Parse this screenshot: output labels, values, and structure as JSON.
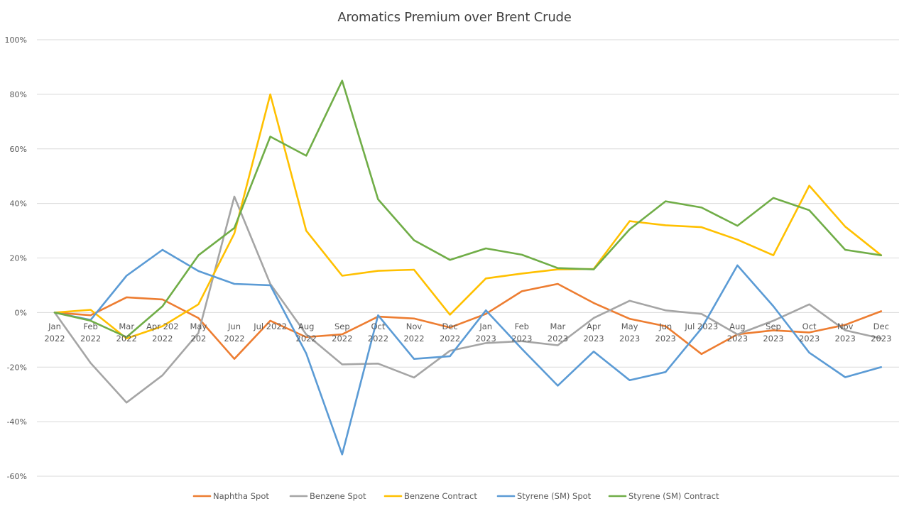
{
  "chart_data": {
    "type": "line",
    "title": "Aromatics Premium over Brent Crude",
    "xlabel": "",
    "ylabel": "",
    "ylim": [
      -60,
      100
    ],
    "ytick_step": 20,
    "y_unit": "%",
    "grid": true,
    "legend_position": "bottom",
    "categories": [
      [
        "Jan",
        "2022"
      ],
      [
        "Feb",
        "2022"
      ],
      [
        "Mar",
        "2022"
      ],
      [
        "Apr 202",
        "2022"
      ],
      [
        "May",
        "202"
      ],
      [
        "Jun",
        "2022"
      ],
      [
        "Jul 2022",
        ""
      ],
      [
        "Aug",
        "2022"
      ],
      [
        "Sep",
        "2022"
      ],
      [
        "Oct",
        "2022"
      ],
      [
        "Nov",
        "2022"
      ],
      [
        "Dec",
        "2022"
      ],
      [
        "Jan",
        "2023"
      ],
      [
        "Feb",
        "2023"
      ],
      [
        "Mar",
        "2023"
      ],
      [
        "Apr",
        "2023"
      ],
      [
        "May",
        "2023"
      ],
      [
        "Jun",
        "2023"
      ],
      [
        "Jul 2023",
        ""
      ],
      [
        "Aug",
        "2023"
      ],
      [
        "Sep",
        "2023"
      ],
      [
        "Oct",
        "2023"
      ],
      [
        "Nov",
        "2023"
      ],
      [
        "Dec",
        "2023"
      ]
    ],
    "series": [
      {
        "name": "Naphtha Spot",
        "color": "#ED7D31",
        "values": [
          0,
          -1,
          5.6,
          4.8,
          -2,
          -17,
          -3,
          -9,
          -8,
          -1.5,
          -2.2,
          -5.5,
          -0.5,
          7.8,
          10.5,
          3.5,
          -2.3,
          -5,
          -15.2,
          -8,
          -6.5,
          -7.3,
          -4.5,
          0.5
        ]
      },
      {
        "name": "Benzene Spot",
        "color": "#A5A5A5",
        "values": [
          0,
          -18.5,
          -33,
          -23,
          -7.5,
          42.5,
          10.5,
          -8,
          -19,
          -18.7,
          -23.8,
          -14,
          -11.2,
          -10.5,
          -12,
          -2,
          4.3,
          0.8,
          -0.5,
          -8,
          -3,
          3,
          -6.5,
          -9.5
        ]
      },
      {
        "name": "Benzene Contract",
        "color": "#FFC000",
        "values": [
          0,
          1,
          -9.5,
          -5,
          3,
          29,
          80,
          30,
          13.5,
          15.3,
          15.7,
          -0.8,
          12.5,
          14.3,
          15.8,
          16,
          33.5,
          32,
          31.3,
          26.7,
          21,
          46.5,
          31.5,
          21
        ]
      },
      {
        "name": "Styrene (SM) Spot",
        "color": "#5B9BD5",
        "values": [
          0,
          -2.7,
          13.5,
          23,
          15.2,
          10.5,
          10,
          -15,
          -52,
          -1,
          -17,
          -16,
          0.8,
          -13.3,
          -26.8,
          -14.3,
          -24.8,
          -21.8,
          -5.8,
          17.3,
          2.3,
          -14.7,
          -23.7,
          -20
        ]
      },
      {
        "name": "Styrene (SM) Contract",
        "color": "#70AD47",
        "values": [
          0,
          -3,
          -9,
          2.3,
          21,
          31,
          64.5,
          57.5,
          85,
          41.5,
          26.5,
          19.3,
          23.5,
          21.2,
          16.3,
          15.8,
          30.5,
          40.8,
          38.5,
          31.8,
          42,
          37.5,
          23,
          21
        ]
      }
    ]
  }
}
